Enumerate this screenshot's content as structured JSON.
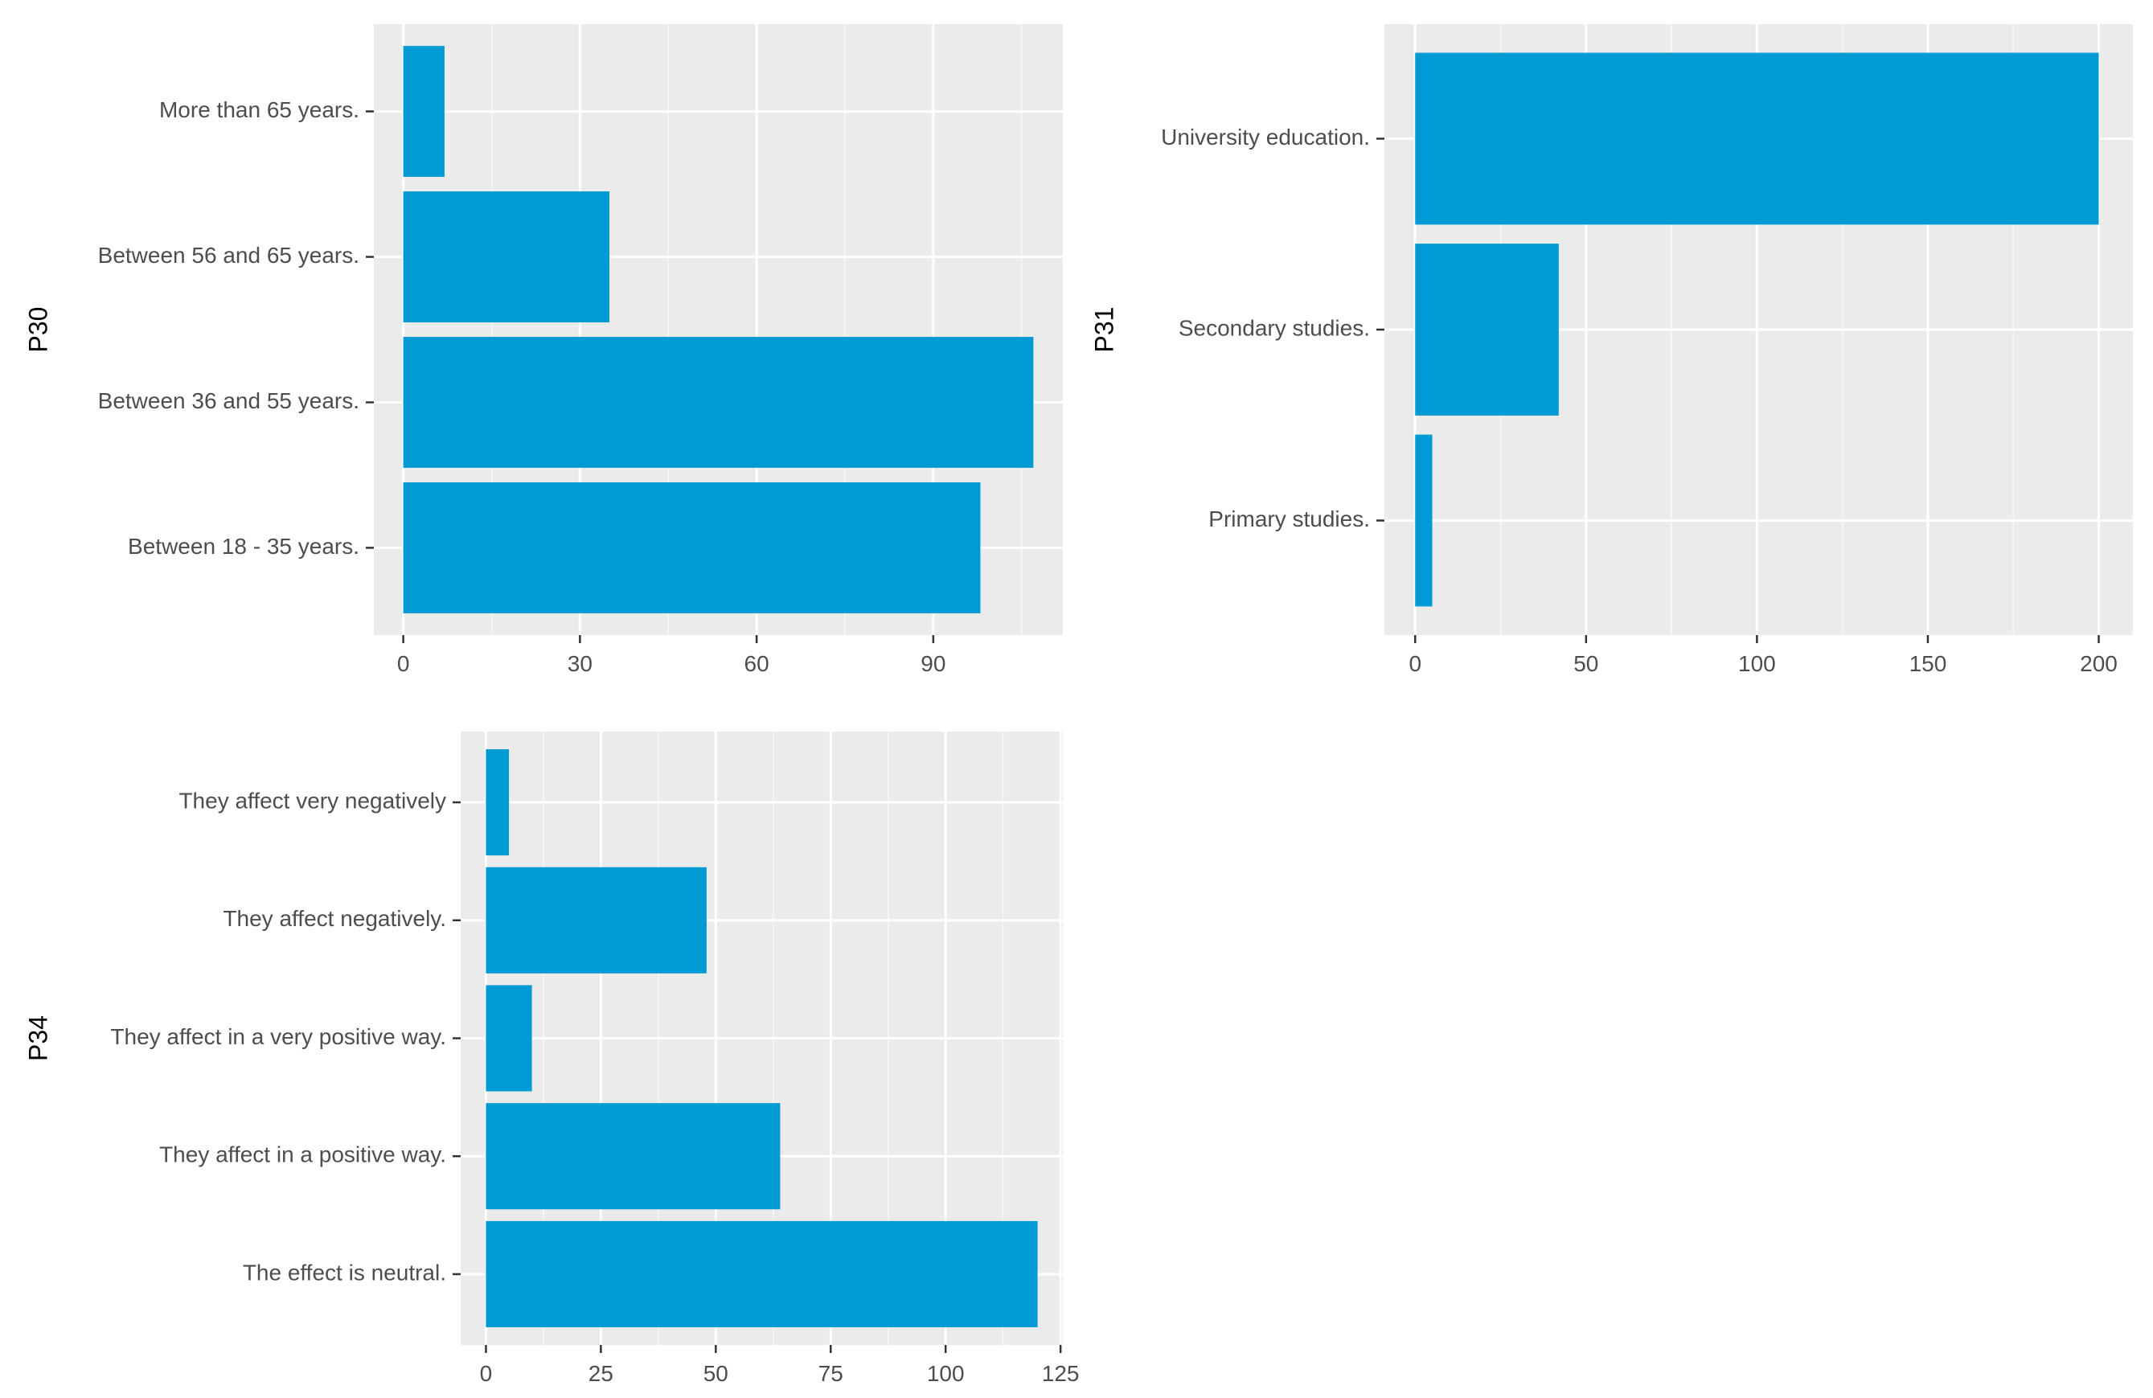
{
  "colors": {
    "bar": "#009ad4",
    "panel_background": "#ebebeb",
    "page_background": "#ffffff"
  },
  "chart_data": [
    {
      "type": "bar",
      "orientation": "horizontal",
      "ylabel": "P30",
      "xlabel": "",
      "categories": [
        "More than 65 years.",
        "Between 56 and 65 years.",
        "Between 36 and 55 years.",
        "Between 18 - 35 years."
      ],
      "values": [
        7,
        35,
        107,
        98
      ],
      "xlim": [
        -5,
        112
      ],
      "xticks": [
        0,
        30,
        60,
        90
      ],
      "grid": true
    },
    {
      "type": "bar",
      "orientation": "horizontal",
      "ylabel": "P31",
      "xlabel": "",
      "categories": [
        "University education.",
        "Secondary studies.",
        "Primary studies."
      ],
      "values": [
        200,
        42,
        5
      ],
      "xlim": [
        -9,
        210
      ],
      "xticks": [
        0,
        50,
        100,
        150,
        200
      ],
      "grid": true
    },
    {
      "type": "bar",
      "orientation": "horizontal",
      "ylabel": "P34",
      "xlabel": "",
      "categories": [
        "They affect very negatively",
        "They affect negatively.",
        "They affect in a very positive way.",
        "They affect in a positive way.",
        "The effect is neutral."
      ],
      "values": [
        5,
        48,
        10,
        64,
        120
      ],
      "xlim": [
        -5.5,
        125.5
      ],
      "xticks": [
        0,
        25,
        50,
        75,
        100,
        125
      ],
      "grid": true
    }
  ]
}
